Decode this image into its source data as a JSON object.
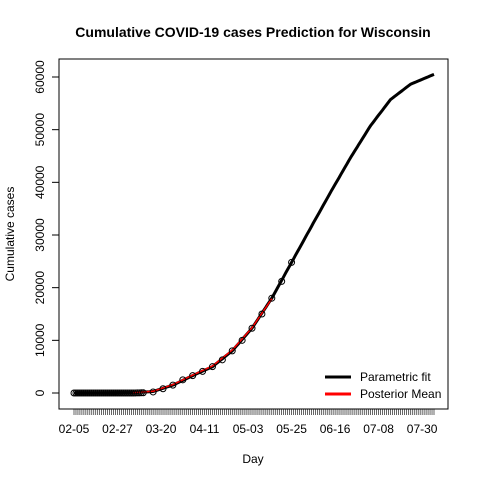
{
  "colors": {
    "fit": "#000000",
    "posterior": "#ff0000",
    "points": "#000000"
  },
  "chart_data": {
    "type": "line",
    "title": "Cumulative COVID-19 cases Prediction for Wisconsin",
    "xlabel": "Day",
    "ylabel": "Cumulative cases",
    "x_tick_labels": [
      "02-05",
      "02-27",
      "03-20",
      "04-11",
      "05-03",
      "05-25",
      "06-16",
      "07-08",
      "07-30"
    ],
    "y_ticks": [
      0,
      10000,
      20000,
      30000,
      40000,
      50000,
      60000
    ],
    "ylim": [
      0,
      60000
    ],
    "x_range_days": [
      0,
      182
    ],
    "legend": {
      "position": "bottom-right",
      "entries": [
        "Parametric fit",
        "Posterior Mean"
      ]
    },
    "observed": {
      "day": [
        0,
        10,
        20,
        30,
        35,
        40,
        45,
        50,
        55,
        60,
        65,
        70,
        75,
        80,
        85,
        90,
        95,
        100,
        105,
        110
      ],
      "cases": [
        0,
        0,
        0,
        0,
        50,
        200,
        800,
        1500,
        2500,
        3300,
        4100,
        5000,
        6300,
        8000,
        10000,
        12300,
        15000,
        18000,
        21200,
        24800
      ]
    },
    "series": [
      {
        "name": "Parametric fit",
        "day": [
          0,
          20,
          30,
          40,
          50,
          60,
          70,
          80,
          90,
          100,
          110,
          120,
          130,
          140,
          150,
          160,
          170,
          182
        ],
        "values": [
          0,
          0,
          60,
          280,
          1500,
          3300,
          5000,
          8000,
          12300,
          18000,
          24800,
          32000,
          39300,
          46600,
          53000,
          59000,
          64500,
          60500
        ]
      },
      {
        "name": "Posterior Mean",
        "day": [
          30,
          40,
          50,
          60,
          70,
          80,
          90,
          100
        ],
        "values": [
          80,
          320,
          1600,
          3400,
          5150,
          8150,
          12400,
          17900
        ]
      }
    ]
  }
}
